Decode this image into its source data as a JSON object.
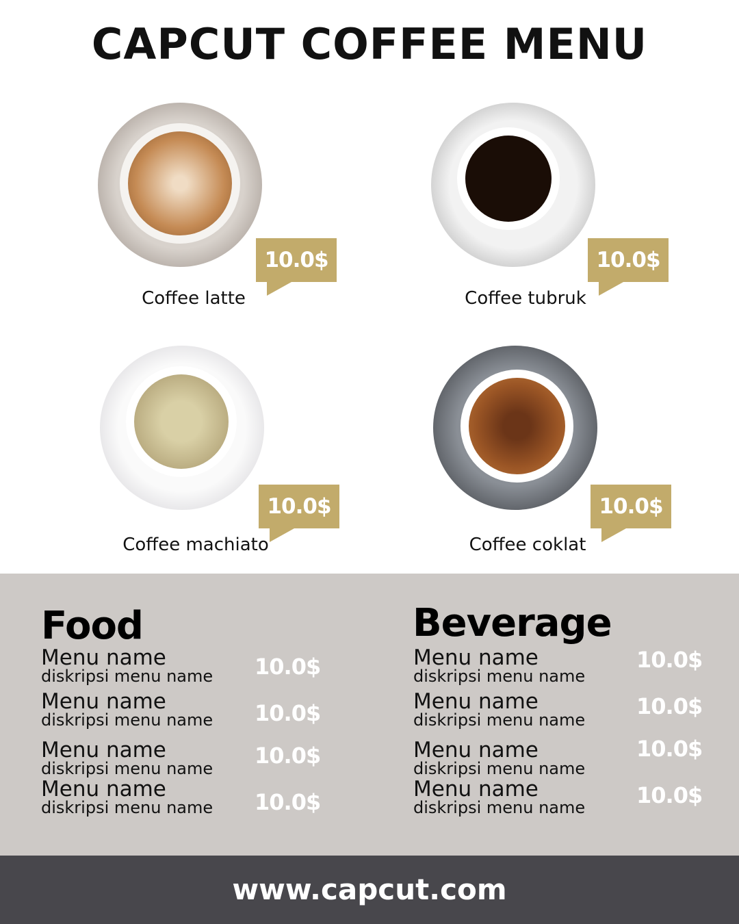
{
  "title": "CAPCUT COFFEE MENU",
  "products": [
    {
      "name": "Coffee latte",
      "price": "10.0$"
    },
    {
      "name": "Coffee tubruk",
      "price": "10.0$"
    },
    {
      "name": "Coffee machiato",
      "price": "10.0$"
    },
    {
      "name": "Coffee coklat",
      "price": "10.0$"
    }
  ],
  "food": {
    "heading": "Food",
    "items": [
      {
        "name": "Menu name",
        "desc": "diskripsi menu name",
        "price": "10.0$"
      },
      {
        "name": "Menu name",
        "desc": "diskripsi menu name",
        "price": "10.0$"
      },
      {
        "name": "Menu name",
        "desc": "diskripsi menu name",
        "price": "10.0$"
      },
      {
        "name": "Menu name",
        "desc": "diskripsi menu name",
        "price": "10.0$"
      }
    ]
  },
  "beverage": {
    "heading": "Beverage",
    "items": [
      {
        "name": "Menu name",
        "desc": "diskripsi menu name",
        "price": "10.0$"
      },
      {
        "name": "Menu name",
        "desc": "diskripsi menu name",
        "price": "10.0$"
      },
      {
        "name": "Menu name",
        "desc": "diskripsi menu name",
        "price": "10.0$"
      },
      {
        "name": "Menu name",
        "desc": "diskripsi menu name",
        "price": "10.0$"
      }
    ]
  },
  "footer": "www.capcut.com",
  "colors": {
    "accent": "#c2ab6b",
    "panel": "#cdc9c6",
    "footer": "#48474c"
  }
}
